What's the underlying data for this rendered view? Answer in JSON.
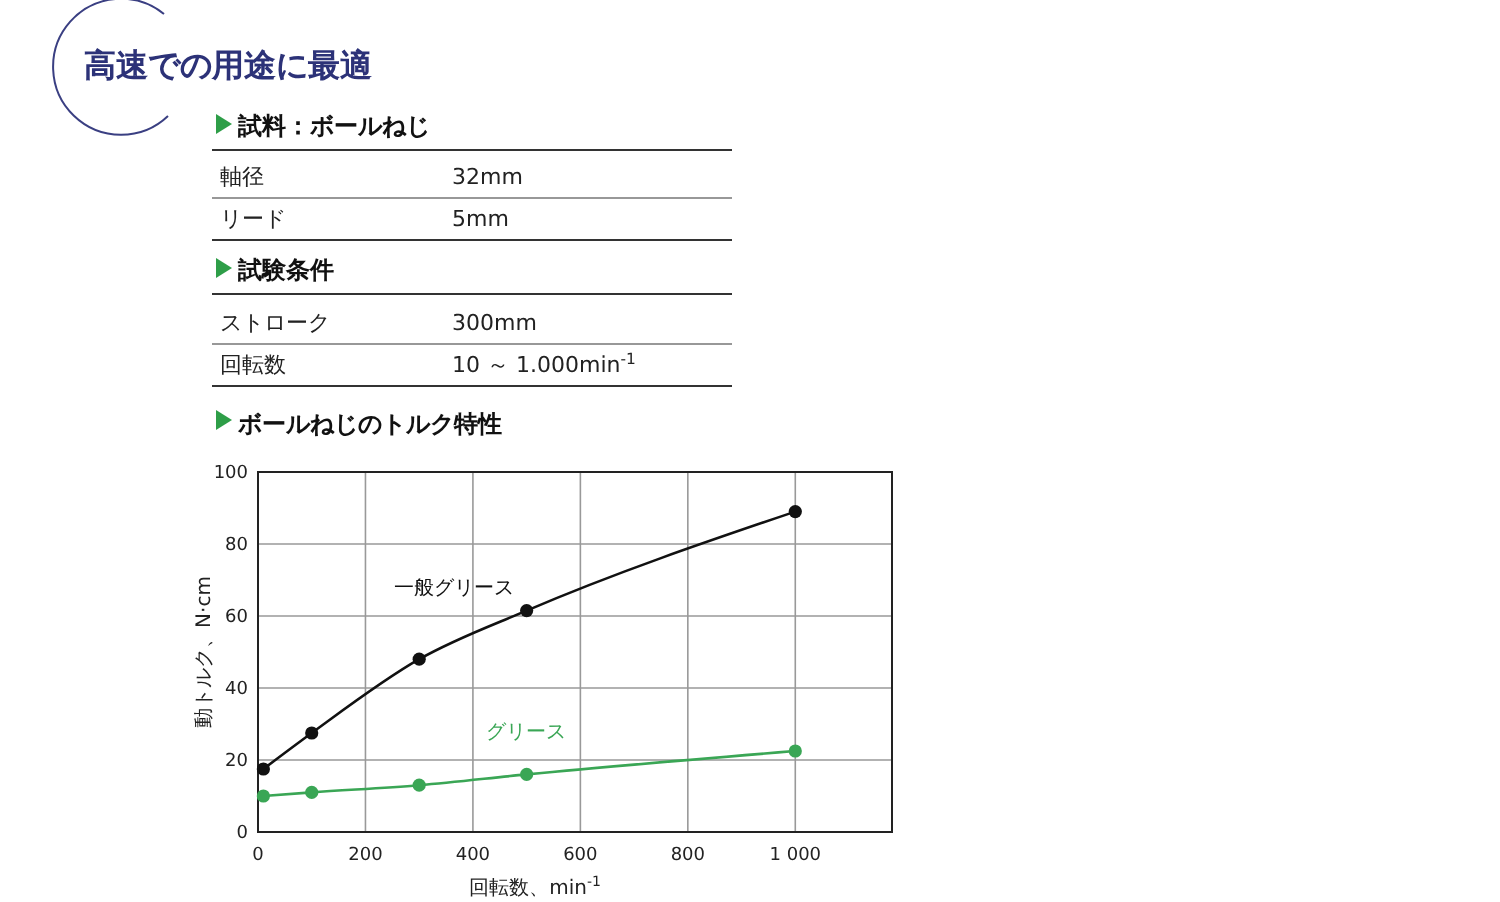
{
  "chart_data": {
    "type": "line",
    "title": "高速での用途に最適",
    "subtitle": "ボールねじのトルク特性",
    "annotations": [
      "試料：ボールねじ",
      "軸径",
      "32mm",
      "リード",
      "5mm",
      "試験条件",
      "ストローク",
      "300mm",
      "回転数",
      "10 ～ 1.000min$^{-1}$"
    ],
    "xlabel": "回転数、min$^{-1}$",
    "ylabel": "動トルク、N·cm",
    "x": [
      10,
      100,
      300,
      500,
      1000
    ],
    "series": [
      {
        "name": "一般グリース",
        "color": "#111111",
        "values": [
          17.5,
          27.5,
          48,
          61.5,
          89
        ]
      },
      {
        "name": "グリース",
        "color": "#3aa655",
        "values": [
          10,
          11,
          13,
          16,
          22.5
        ]
      }
    ],
    "xlim": [
      0,
      1180
    ],
    "xticks": [
      0,
      200,
      400,
      600,
      800,
      {
        "value": 1000,
        "label": "1 000"
      }
    ],
    "ylim": [
      0,
      100
    ],
    "yticks": [
      0,
      20,
      40,
      60,
      80,
      100
    ],
    "grid": true,
    "marker": "circle",
    "line_style": "solid"
  }
}
